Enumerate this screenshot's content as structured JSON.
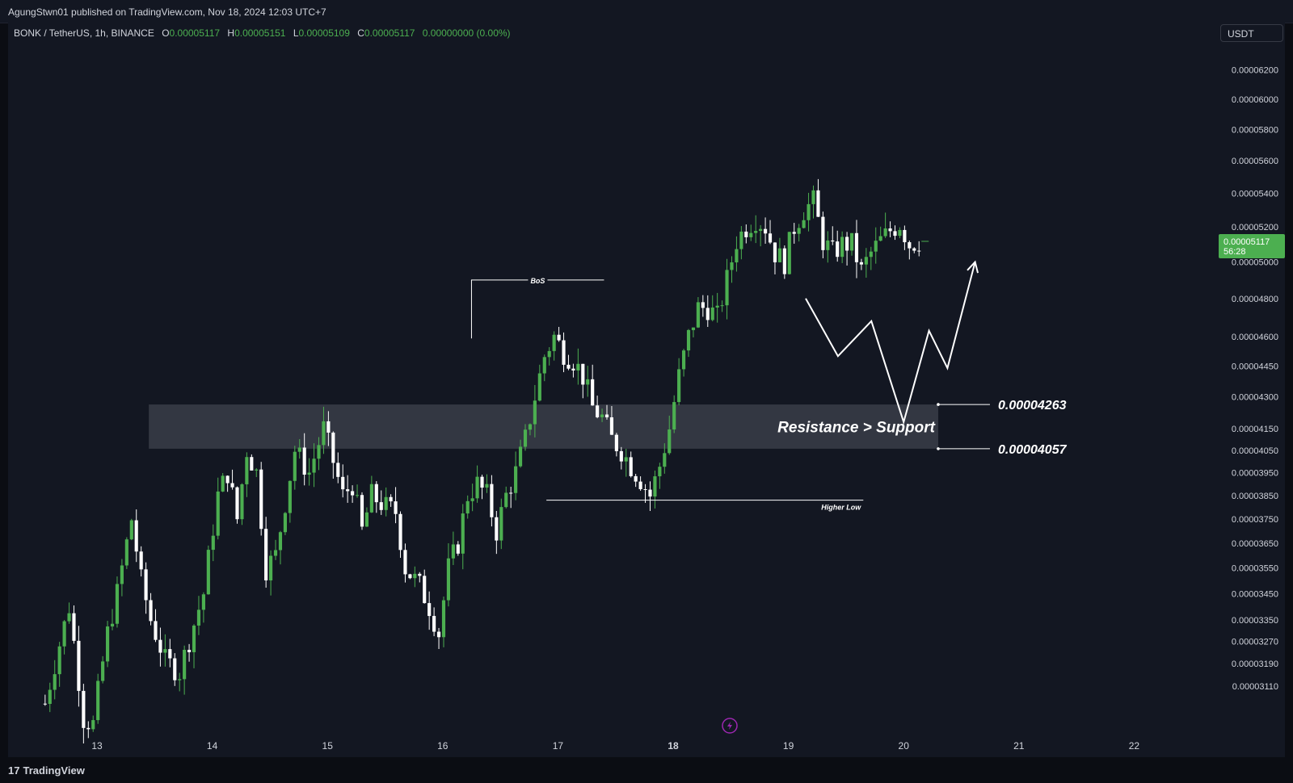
{
  "header": {
    "published": "AgungStwn01 published on TradingView.com, Nov 18, 2024 12:03 UTC+7"
  },
  "legend": {
    "symbol": "BONK / TetherUS, 1h, BINANCE",
    "o_label": "O",
    "o": "0.00005117",
    "h_label": "H",
    "h": "0.00005151",
    "l_label": "L",
    "l": "0.00005109",
    "c_label": "C",
    "c": "0.00005117",
    "change": "0.00000000 (0.00%)"
  },
  "currency_button": "USDT",
  "price_badge": {
    "price": "0.00005117",
    "countdown": "56:28"
  },
  "footer": {
    "brand": "TradingView",
    "logo_text": "17"
  },
  "colors": {
    "up": "#4caf50",
    "down": "#ffffff",
    "background": "#131722",
    "zone": "#3a3d48",
    "badge": "#4caf50"
  },
  "chart_data": {
    "type": "candlestick",
    "title": "BONK / TetherUS, 1h, BINANCE",
    "yscale": "log",
    "ylim": [
      3e-05,
      6.35e-05
    ],
    "y_ticks": [
      "0.00006200",
      "0.00006000",
      "0.00005800",
      "0.00005600",
      "0.00005400",
      "0.00005200",
      "0.00005000",
      "0.00004800",
      "0.00004600",
      "0.00004450",
      "0.00004300",
      "0.00004150",
      "0.00004050",
      "0.00003950",
      "0.00003850",
      "0.00003750",
      "0.00003650",
      "0.00003550",
      "0.00003450",
      "0.00003350",
      "0.00003270",
      "0.00003190",
      "0.00003110"
    ],
    "x_ticks": [
      {
        "label": "13",
        "day": 13
      },
      {
        "label": "14",
        "day": 14
      },
      {
        "label": "15",
        "day": 15
      },
      {
        "label": "16",
        "day": 16
      },
      {
        "label": "17",
        "day": 17
      },
      {
        "label": "18",
        "day": 18,
        "bold": true
      },
      {
        "label": "19",
        "day": 19
      },
      {
        "label": "20",
        "day": 20
      },
      {
        "label": "21",
        "day": 21
      },
      {
        "label": "22",
        "day": 22
      }
    ],
    "candles_start_day": 12.55,
    "candles_step_hours": 1,
    "anchors": [
      [
        0,
        3.05e-05
      ],
      [
        5,
        3.4e-05
      ],
      [
        8,
        3e-05
      ],
      [
        10,
        2.98e-05
      ],
      [
        13,
        3.3e-05
      ],
      [
        15,
        3.45e-05
      ],
      [
        18,
        3.75e-05
      ],
      [
        20,
        3.5e-05
      ],
      [
        22,
        3.35e-05
      ],
      [
        25,
        3.2e-05
      ],
      [
        28,
        3.16e-05
      ],
      [
        33,
        3.45e-05
      ],
      [
        36,
        3.85e-05
      ],
      [
        38,
        3.95e-05
      ],
      [
        40,
        3.75e-05
      ],
      [
        42,
        4.05e-05
      ],
      [
        44,
        3.95e-05
      ],
      [
        46,
        3.55e-05
      ],
      [
        48,
        3.6e-05
      ],
      [
        50,
        3.82e-05
      ],
      [
        52,
        4.05e-05
      ],
      [
        55,
        3.95e-05
      ],
      [
        58,
        4.15e-05
      ],
      [
        60,
        4e-05
      ],
      [
        62,
        3.85e-05
      ],
      [
        64,
        3.9e-05
      ],
      [
        66,
        3.7e-05
      ],
      [
        68,
        3.85e-05
      ],
      [
        71,
        3.8e-05
      ],
      [
        73,
        3.78e-05
      ],
      [
        75,
        3.55e-05
      ],
      [
        78,
        3.48e-05
      ],
      [
        80,
        3.4e-05
      ],
      [
        82,
        3.3e-05
      ],
      [
        84,
        3.55e-05
      ],
      [
        86,
        3.65e-05
      ],
      [
        88,
        3.85e-05
      ],
      [
        90,
        3.9e-05
      ],
      [
        92,
        3.85e-05
      ],
      [
        94,
        3.7e-05
      ],
      [
        96,
        3.85e-05
      ],
      [
        98,
        3.95e-05
      ],
      [
        100,
        4.1e-05
      ],
      [
        102,
        4.3e-05
      ],
      [
        104,
        4.5e-05
      ],
      [
        106,
        4.6e-05
      ],
      [
        108,
        4.52e-05
      ],
      [
        110,
        4.48e-05
      ],
      [
        112,
        4.4e-05
      ],
      [
        114,
        4.25e-05
      ],
      [
        116,
        4.2e-05
      ],
      [
        118,
        4.1e-05
      ],
      [
        120,
        4.05e-05
      ],
      [
        122,
        3.98e-05
      ],
      [
        124,
        3.92e-05
      ],
      [
        126,
        3.85e-05
      ],
      [
        128,
        3.98e-05
      ],
      [
        130,
        4.15e-05
      ],
      [
        132,
        4.4e-05
      ],
      [
        134,
        4.6e-05
      ],
      [
        136,
        4.75e-05
      ],
      [
        138,
        4.75e-05
      ],
      [
        140,
        4.7e-05
      ],
      [
        142,
        4.9e-05
      ],
      [
        144,
        5.12e-05
      ],
      [
        146,
        5.2e-05
      ],
      [
        148,
        5.25e-05
      ],
      [
        150,
        5.2e-05
      ],
      [
        152,
        5.05e-05
      ],
      [
        154,
        5e-05
      ],
      [
        156,
        5.2e-05
      ],
      [
        158,
        5.3e-05
      ],
      [
        160,
        5.35e-05
      ],
      [
        162,
        5.12e-05
      ],
      [
        164,
        5.05e-05
      ],
      [
        166,
        5.1e-05
      ],
      [
        168,
        5.1e-05
      ],
      [
        170,
        4.95e-05
      ],
      [
        172,
        5.05e-05
      ],
      [
        174,
        5.12e-05
      ],
      [
        176,
        5.18e-05
      ],
      [
        178,
        5.22e-05
      ],
      [
        180,
        5.1e-05
      ],
      [
        182,
        5.12e-05
      ]
    ],
    "zone": {
      "low": 4.057e-05,
      "high": 4.263e-05,
      "label": "Resistance > Support",
      "low_label": "0.00004057",
      "high_label": "0.00004263"
    },
    "annotations": [
      {
        "text": "BoS",
        "price": 4.9e-05,
        "from_day": 16.25,
        "to_day": 17.4
      },
      {
        "text": "Higher Low",
        "price": 3.83e-05,
        "from_day": 16.9,
        "to_day": 19.65
      }
    ],
    "projection": [
      [
        19.15,
        4.8e-05
      ],
      [
        19.43,
        4.5e-05
      ],
      [
        19.72,
        4.68e-05
      ],
      [
        20.0,
        4.18e-05
      ],
      [
        20.22,
        4.63e-05
      ],
      [
        20.38,
        4.44e-05
      ],
      [
        20.62,
        5e-05
      ]
    ]
  }
}
